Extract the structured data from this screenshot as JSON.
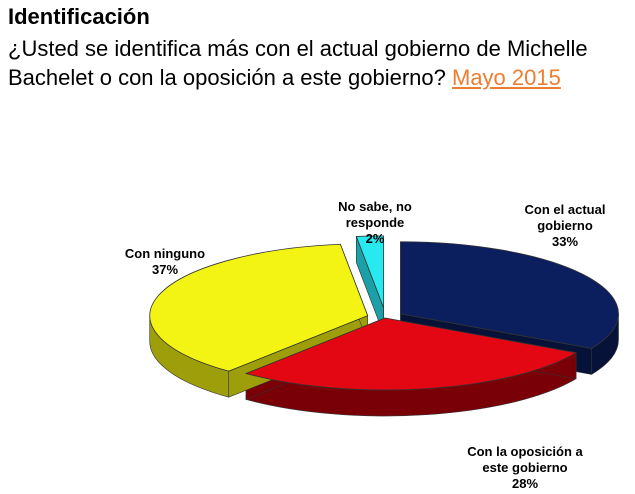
{
  "header": {
    "title": "Identificación",
    "question": "¿Usted se identifica más con el actual gobierno de Michelle Bachelet o con la oposición a este gobierno?",
    "period_link": "Mayo 2015"
  },
  "chart_data": {
    "type": "pie",
    "title": "",
    "slices": [
      {
        "label_lines": [
          "Con el actual",
          "gobierno"
        ],
        "pct_label": "33%",
        "value": 33,
        "color": "#0b1f5e",
        "side": "#071238"
      },
      {
        "label_lines": [
          "Con la oposición a",
          "este gobierno"
        ],
        "pct_label": "28%",
        "value": 28,
        "color": "#e30613",
        "side": "#7a0008"
      },
      {
        "label_lines": [
          "Con ninguno"
        ],
        "pct_label": "37%",
        "value": 37,
        "color": "#f3f314",
        "side": "#9e9e0a"
      },
      {
        "label_lines": [
          "No sabe, no",
          "responde"
        ],
        "pct_label": "2%",
        "value": 2,
        "color": "#28e8f0",
        "side": "#1aa0a6"
      }
    ]
  }
}
